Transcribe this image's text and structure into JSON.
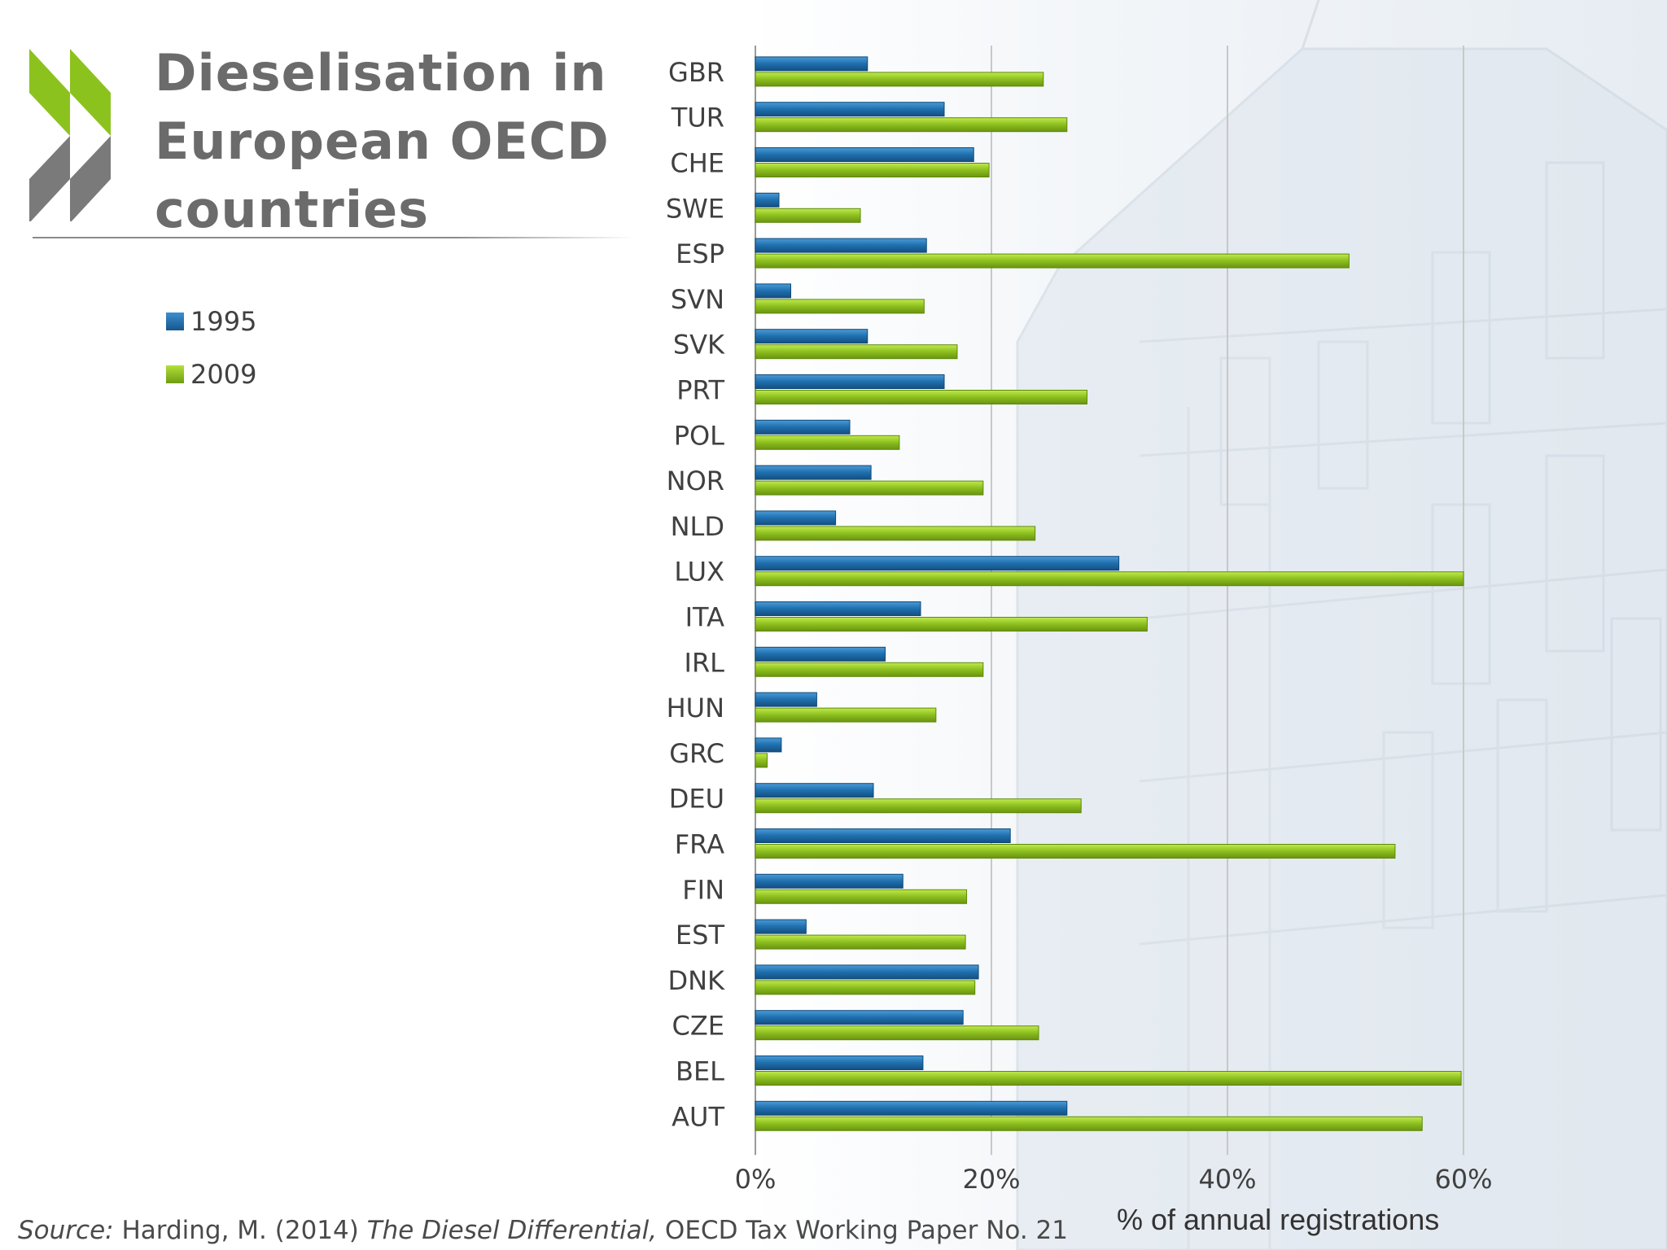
{
  "slide": {
    "title": "Dieselisation in European OECD countries",
    "source_label": "Source:",
    "source_author": " Harding, M. (2014) ",
    "source_work": "The Diesel Differential,",
    "source_rest": " OECD Tax Working Paper No. 21"
  },
  "colors": {
    "series_1995": "#1f6fae",
    "series_2009": "#8cbf1f",
    "logo_green": "#8cc21e",
    "logo_grey": "#7a7a7a"
  },
  "chart_data": {
    "type": "bar",
    "orientation": "horizontal",
    "title": "",
    "xlabel": "% of annual registrations",
    "ylabel": "",
    "xlim": [
      0,
      60
    ],
    "xticks": [
      "0%",
      "20%",
      "40%",
      "60%"
    ],
    "grid": true,
    "legend_position": "left",
    "categories": [
      "GBR",
      "TUR",
      "CHE",
      "SWE",
      "ESP",
      "SVN",
      "SVK",
      "PRT",
      "POL",
      "NOR",
      "NLD",
      "LUX",
      "ITA",
      "IRL",
      "HUN",
      "GRC",
      "DEU",
      "FRA",
      "FIN",
      "EST",
      "DNK",
      "CZE",
      "BEL",
      "AUT"
    ],
    "series": [
      {
        "name": "1995",
        "values": [
          9.5,
          16,
          18.5,
          2,
          14.5,
          3,
          9.5,
          16,
          8,
          9.8,
          6.8,
          30.8,
          14,
          11,
          5.2,
          2.2,
          10,
          21.6,
          12.5,
          4.3,
          18.9,
          17.6,
          14.2,
          26.4
        ]
      },
      {
        "name": "2009",
        "values": [
          24.4,
          26.4,
          19.8,
          8.9,
          50.3,
          14.3,
          17.1,
          28.1,
          12.2,
          19.3,
          23.7,
          60,
          33.2,
          19.3,
          15.3,
          1,
          27.6,
          54.2,
          17.9,
          17.8,
          18.6,
          24,
          59.8,
          56.5
        ]
      }
    ]
  }
}
